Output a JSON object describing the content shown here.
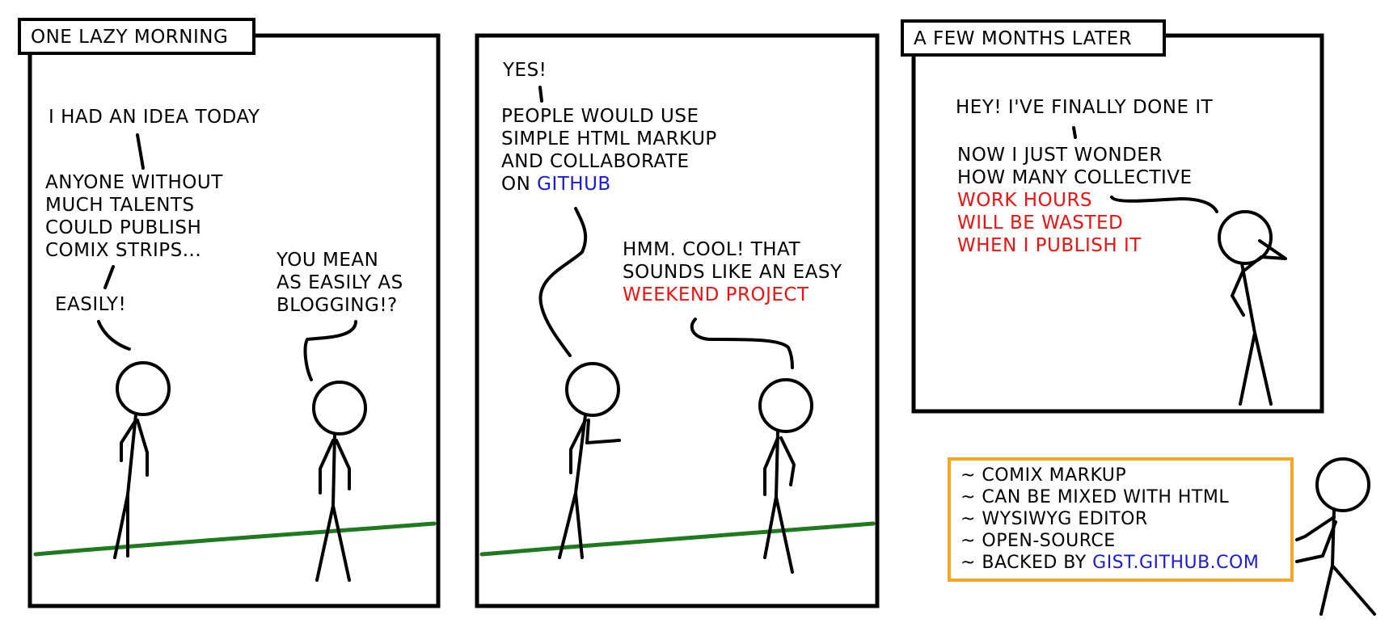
{
  "panel1": {
    "caption": "ONE LAZY MORNING",
    "line1": "I HAD AN IDEA TODAY",
    "line2": [
      "ANYONE WITHOUT",
      "MUCH TALENTS",
      "COULD PUBLISH",
      "COMIX STRIPS..."
    ],
    "line3": "EASILY!",
    "reply": [
      "YOU MEAN",
      "AS EASILY AS",
      "BLOGGING!?"
    ]
  },
  "panel2": {
    "line1": "YES!",
    "line2": [
      "PEOPLE WOULD USE",
      "SIMPLE HTML MARKUP",
      "AND COLLABORATE"
    ],
    "line2_prefix": "ON ",
    "line2_link": "GITHUB",
    "reply": [
      "HMM. COOL! THAT",
      "SOUNDS LIKE AN EASY"
    ],
    "reply_highlight": "WEEKEND PROJECT"
  },
  "panel3": {
    "caption": "A FEW MONTHS LATER",
    "line1": "HEY! I'VE FINALLY DONE IT",
    "line2": [
      "NOW I JUST WONDER",
      "HOW MANY COLLECTIVE"
    ],
    "line2_red": [
      "WORK HOURS",
      "WILL BE WASTED",
      "WHEN I PUBLISH IT"
    ]
  },
  "features": {
    "items": [
      "~ COMIX MARKUP",
      "~ CAN BE MIXED WITH HTML",
      "~ WYSIWYG EDITOR",
      "~ OPEN-SOURCE"
    ],
    "last_prefix": "~ BACKED BY ",
    "last_link": "GIST.GITHUB.COM"
  },
  "colors": {
    "ground": "#1e7a1e",
    "highlight": "#ee1111",
    "link": "#1a1adb",
    "feature_border": "#f5a623"
  }
}
